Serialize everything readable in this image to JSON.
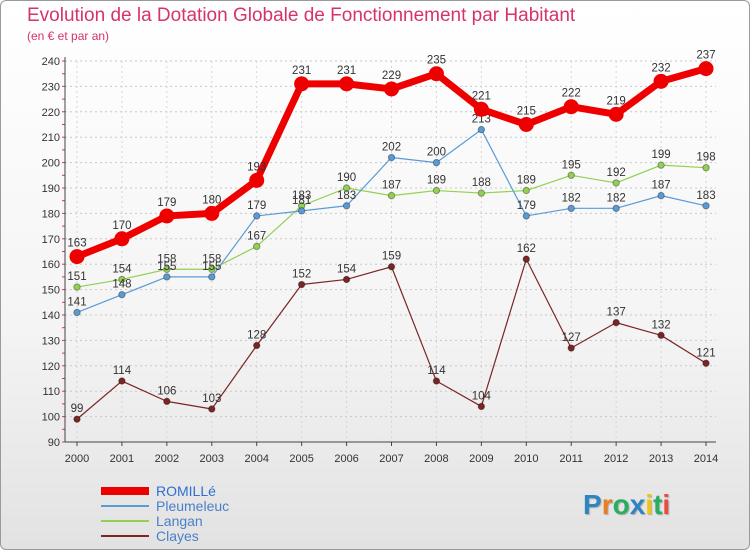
{
  "title": "Evolution de la Dotation Globale de Fonctionnement par Habitant",
  "subtitle": "(en € et par an)",
  "logo": {
    "text": "Proxiti",
    "colors": [
      "#2e86c1",
      "#e67e22",
      "#27ae60",
      "#2e86c1",
      "#f1c40f",
      "#27ae60",
      "#e74c3c"
    ]
  },
  "chart_data": {
    "type": "line",
    "x": [
      "2000",
      "2001",
      "2002",
      "2003",
      "2004",
      "2005",
      "2006",
      "2007",
      "2008",
      "2009",
      "2010",
      "2011",
      "2012",
      "2013",
      "2014"
    ],
    "ylim": [
      90,
      240
    ],
    "yticks": [
      90,
      100,
      110,
      120,
      130,
      140,
      150,
      160,
      170,
      180,
      190,
      200,
      210,
      220,
      230,
      240
    ],
    "grid": true,
    "legend_position": "bottom-left",
    "series": [
      {
        "name": "ROMILLé",
        "color": "#ee0000",
        "values": [
          163,
          170,
          179,
          180,
          193,
          231,
          231,
          229,
          235,
          221,
          215,
          222,
          219,
          232,
          237
        ],
        "labels": [
          "163",
          "170",
          "179",
          "180",
          "193",
          "231",
          "231",
          "229",
          "235",
          "221",
          "215",
          "222",
          "219",
          "232",
          "237"
        ]
      },
      {
        "name": "Pleumeleuc",
        "color": "#5b9bd5",
        "values": [
          141,
          148,
          155,
          155,
          179,
          181,
          183,
          202,
          200,
          213,
          179,
          182,
          182,
          187,
          183
        ],
        "labels": [
          "141",
          "148",
          "155",
          "155",
          "179",
          "181",
          "183",
          "202",
          "200",
          "213",
          "179",
          "182",
          "182",
          "187",
          "183"
        ]
      },
      {
        "name": "Langan",
        "color": "#92d050",
        "values": [
          151,
          154,
          158,
          158,
          167,
          183,
          190,
          187,
          189,
          188,
          189,
          195,
          192,
          199,
          198
        ],
        "labels": [
          "151",
          "154",
          "158",
          "158",
          "167",
          "183",
          "190",
          "187",
          "189",
          "188",
          "189",
          "195",
          "192",
          "199",
          "198"
        ]
      },
      {
        "name": "Clayes",
        "color": "#7b2525",
        "values": [
          99,
          114,
          106,
          103,
          128,
          152,
          154,
          159,
          114,
          104,
          162,
          127,
          137,
          132,
          121
        ],
        "labels": [
          "99",
          "114",
          "106",
          "103",
          "128",
          "152",
          "154",
          "159",
          "114",
          "104",
          "162",
          "127",
          "137",
          "132",
          "121"
        ]
      }
    ]
  }
}
